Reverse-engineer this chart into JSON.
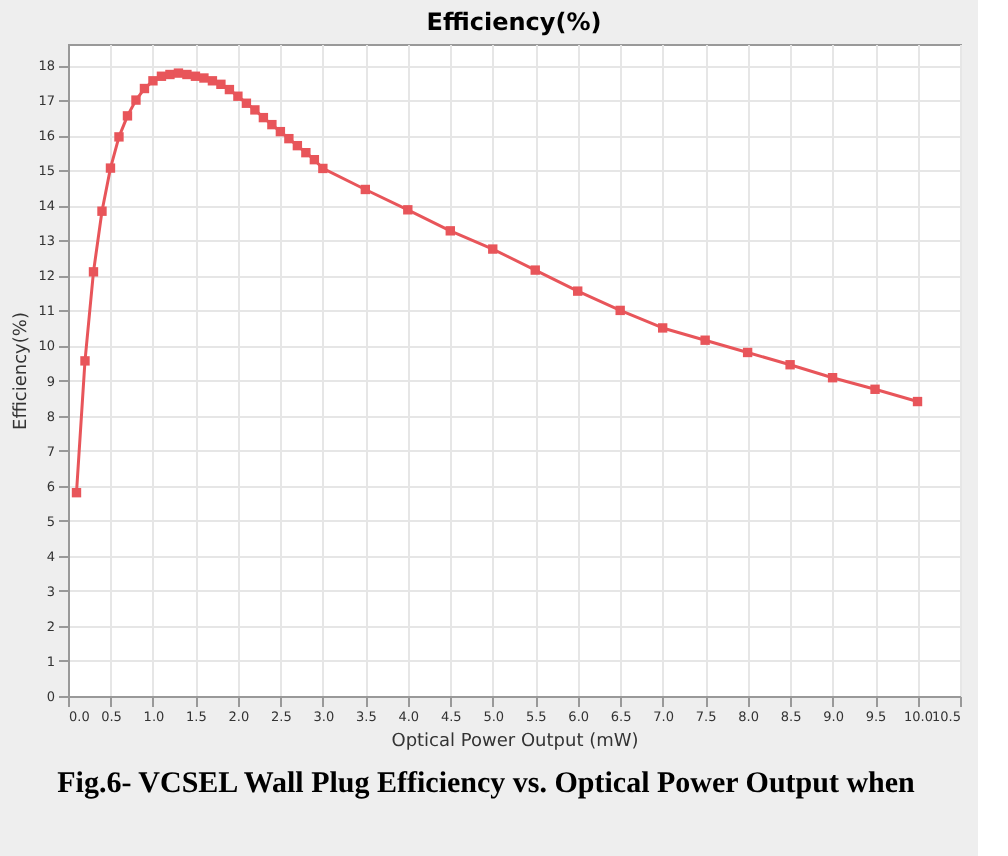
{
  "chart_data": {
    "type": "line",
    "title": "Efficiency(%)",
    "xlabel": "Optical Power Output (mW)",
    "ylabel": "Efficiency(%)",
    "annotations": [
      "Fig.6- VCSEL Wall Plug Efficiency vs. Optical Power Output when"
    ],
    "x": [
      0.1,
      0.2,
      0.3,
      0.4,
      0.5,
      0.6,
      0.7,
      0.8,
      0.9,
      1.0,
      1.1,
      1.2,
      1.3,
      1.4,
      1.5,
      1.6,
      1.7,
      1.8,
      1.9,
      2.0,
      2.1,
      2.2,
      2.3,
      2.4,
      2.5,
      2.6,
      2.7,
      2.8,
      2.9,
      3.0,
      3.5,
      4.0,
      4.5,
      5.0,
      5.5,
      6.0,
      6.5,
      7.0,
      7.5,
      8.0,
      8.5,
      9.0,
      9.5,
      10.0
    ],
    "series": [
      {
        "color": "#e8555a",
        "values": [
          5.8,
          9.56,
          12.1,
          13.83,
          15.06,
          15.95,
          16.55,
          17.0,
          17.33,
          17.55,
          17.68,
          17.73,
          17.77,
          17.73,
          17.68,
          17.63,
          17.55,
          17.45,
          17.3,
          17.11,
          16.91,
          16.72,
          16.5,
          16.3,
          16.1,
          15.9,
          15.7,
          15.5,
          15.3,
          15.05,
          14.45,
          13.87,
          13.27,
          12.75,
          12.15,
          11.55,
          11.0,
          10.5,
          10.15,
          9.8,
          9.45,
          9.08,
          8.75,
          8.4
        ]
      }
    ],
    "xlim": [
      0,
      10.5
    ],
    "xticks": [
      {
        "value": 0,
        "label": "0.0"
      },
      0.5,
      {
        "value": 1,
        "label": "1.0"
      },
      1.5,
      {
        "value": 2,
        "label": "2.0"
      },
      2.5,
      {
        "value": 3,
        "label": "3.0"
      },
      3.5,
      {
        "value": 4,
        "label": "4.0"
      },
      4.5,
      {
        "value": 5,
        "label": "5.0"
      },
      5.5,
      {
        "value": 6,
        "label": "6.0"
      },
      6.5,
      {
        "value": 7,
        "label": "7.0"
      },
      7.5,
      {
        "value": 8,
        "label": "8.0"
      },
      8.5,
      {
        "value": 9,
        "label": "9.0"
      },
      9.5,
      {
        "value": 10,
        "label": "10.0"
      },
      10.5
    ],
    "ylim": [
      0,
      18.6
    ],
    "yticks": [
      0,
      1,
      2,
      3,
      4,
      5,
      6,
      7,
      8,
      9,
      10,
      11,
      12,
      13,
      14,
      15,
      16,
      17,
      18
    ],
    "grid": true,
    "marker": "square",
    "line_style": "solid"
  }
}
